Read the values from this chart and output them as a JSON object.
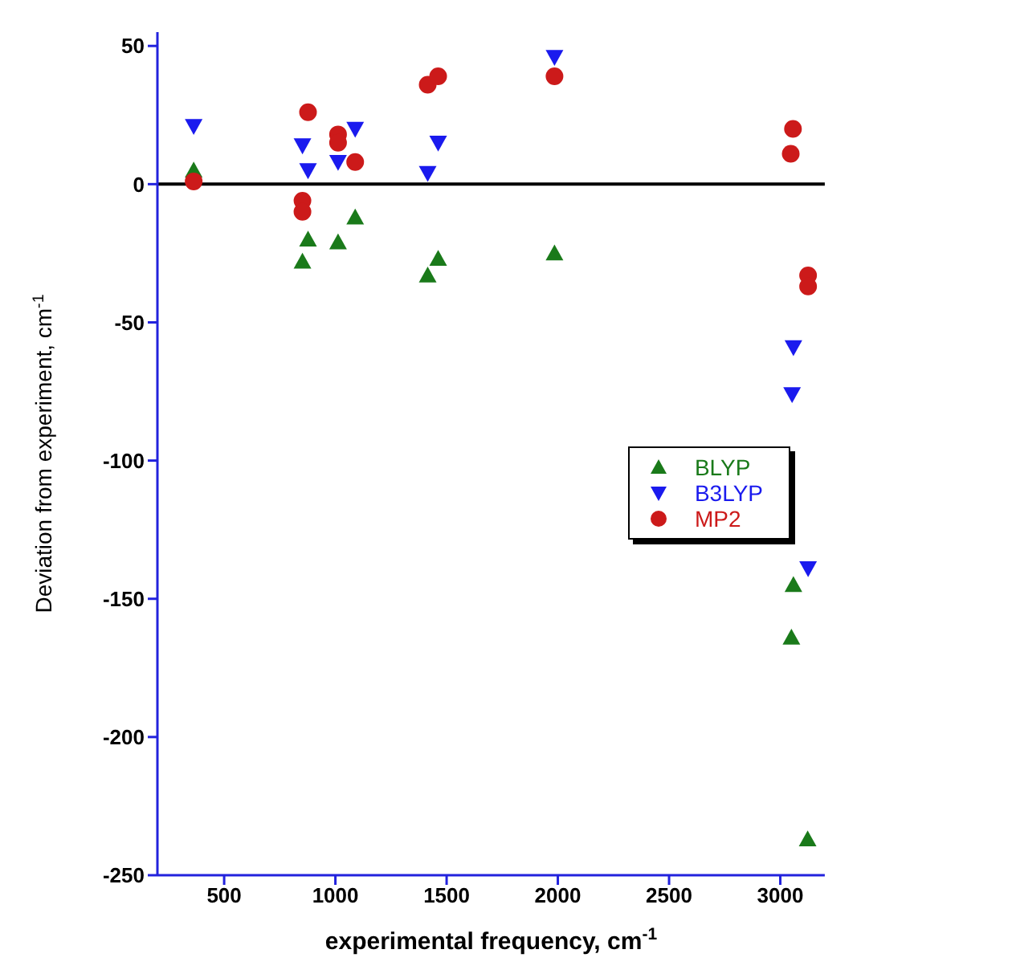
{
  "chart_data": {
    "type": "scatter",
    "xlabel": "experimental frequency, cm$^{-1}$",
    "ylabel": "Deviation from experiment, cm$^{-1}$",
    "xlim": [
      200,
      3200
    ],
    "xticks": [
      500,
      1000,
      1500,
      2000,
      2500,
      3000
    ],
    "ylim": [
      -250,
      55
    ],
    "yticks": [
      -250,
      -200,
      -150,
      -100,
      -50,
      0,
      50
    ],
    "legend": "right",
    "ref_lines": [
      {
        "axis": "y",
        "value": 0,
        "color": "#000000"
      }
    ],
    "series": [
      {
        "name": "BLYP",
        "color": "#1a7a1a",
        "marker": "triangle",
        "x": [
          363,
          852,
          877,
          1012,
          1089,
          1415,
          1462,
          1985,
          3059,
          3050,
          3123
        ],
        "values": [
          5,
          -28,
          -20,
          -21,
          -12,
          -33,
          -27,
          -25,
          -145,
          -164,
          -237
        ]
      },
      {
        "name": "B3LYP",
        "color": "#1a1aee",
        "marker": "triangle-down",
        "x": [
          363,
          852,
          877,
          1012,
          1089,
          1415,
          1462,
          1985,
          3059,
          3053,
          3125
        ],
        "values": [
          21,
          14,
          5,
          8,
          20,
          4,
          15,
          46,
          -59,
          -76,
          -139
        ]
      },
      {
        "name": "MP2",
        "color": "#cc1a1a",
        "marker": "circle",
        "x": [
          363,
          877,
          852,
          852,
          1012,
          1012,
          1089,
          1415,
          1462,
          1985,
          3057,
          3047,
          3125,
          3125
        ],
        "values": [
          1,
          26,
          -6,
          -10,
          18,
          15,
          8,
          36,
          39,
          39,
          20,
          11,
          -33,
          -37
        ]
      }
    ]
  }
}
